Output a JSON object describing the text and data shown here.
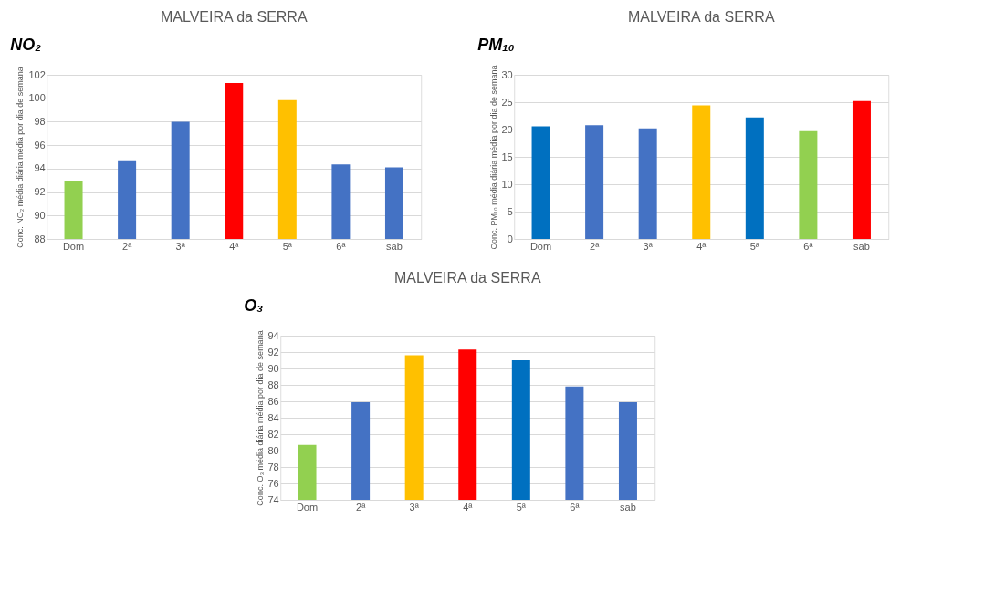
{
  "chart_data": [
    {
      "type": "bar",
      "title": "MALVEIRA da SERRA",
      "annotations": [
        "NO₂"
      ],
      "ylabel": "Conc. NO₂ média diária média por dia de semana",
      "categories": [
        "Dom",
        "2ª",
        "3ª",
        "4ª",
        "5ª",
        "6ª",
        "sab"
      ],
      "values": [
        92.9,
        94.7,
        98.0,
        101.3,
        99.85,
        94.35,
        94.1
      ],
      "colors": [
        "#92d050",
        "#4472c4",
        "#4472c4",
        "#ff0000",
        "#ffc000",
        "#4472c4",
        "#4472c4"
      ],
      "ylim": [
        88,
        102
      ],
      "yticks": [
        88,
        90,
        92,
        94,
        96,
        98,
        100,
        102
      ],
      "grid": "y"
    },
    {
      "type": "bar",
      "title": "MALVEIRA da SERRA",
      "annotations": [
        "PM₁₀"
      ],
      "ylabel": "Conc. PM₁₀ média diária média por dia de semana",
      "categories": [
        "Dom",
        "2ª",
        "3ª",
        "4ª",
        "5ª",
        "6ª",
        "sab"
      ],
      "values": [
        20.6,
        20.8,
        20.2,
        24.4,
        22.2,
        19.7,
        25.2
      ],
      "colors": [
        "#0070c0",
        "#4472c4",
        "#4472c4",
        "#ffc000",
        "#0070c0",
        "#92d050",
        "#ff0000"
      ],
      "ylim": [
        0,
        30
      ],
      "yticks": [
        0,
        5,
        10,
        15,
        20,
        25,
        30
      ],
      "grid": "y"
    },
    {
      "type": "bar",
      "title": "MALVEIRA da SERRA",
      "annotations": [
        "O₃"
      ],
      "ylabel": "Conc. O₃ média diária média por dia de semana",
      "categories": [
        "Dom",
        "2ª",
        "3ª",
        "4ª",
        "5ª",
        "6ª",
        "sab"
      ],
      "values": [
        80.7,
        85.9,
        91.6,
        92.3,
        91.0,
        87.8,
        85.9
      ],
      "colors": [
        "#92d050",
        "#4472c4",
        "#ffc000",
        "#ff0000",
        "#0070c0",
        "#4472c4",
        "#4472c4"
      ],
      "ylim": [
        74,
        94
      ],
      "yticks": [
        74,
        76,
        78,
        80,
        82,
        84,
        86,
        88,
        90,
        92,
        94
      ],
      "grid": "y"
    }
  ]
}
